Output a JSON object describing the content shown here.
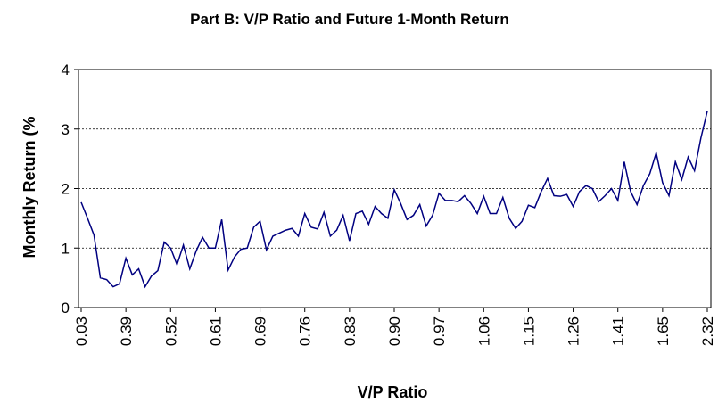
{
  "chart_data": {
    "type": "line",
    "title": "Part B: V/P Ratio and  Future 1-Month Return",
    "x_label": "V/P Ratio",
    "y_label": "Monthly Return (%",
    "categories": [
      "0.03",
      null,
      null,
      null,
      null,
      null,
      null,
      "0.39",
      null,
      null,
      null,
      null,
      null,
      null,
      "0.52",
      null,
      null,
      null,
      null,
      null,
      null,
      "0.61",
      null,
      null,
      null,
      null,
      null,
      null,
      "0.69",
      null,
      null,
      null,
      null,
      null,
      null,
      "0.76",
      null,
      null,
      null,
      null,
      null,
      null,
      "0.83",
      null,
      null,
      null,
      null,
      null,
      null,
      "0.90",
      null,
      null,
      null,
      null,
      null,
      null,
      "0.97",
      null,
      null,
      null,
      null,
      null,
      null,
      "1.06",
      null,
      null,
      null,
      null,
      null,
      null,
      "1.15",
      null,
      null,
      null,
      null,
      null,
      null,
      "1.26",
      null,
      null,
      null,
      null,
      null,
      null,
      "1.41",
      null,
      null,
      null,
      null,
      null,
      null,
      "1.65",
      null,
      null,
      null,
      null,
      null,
      null,
      "2.32"
    ],
    "series": [
      {
        "name": "Monthly Return",
        "color": "#000080",
        "values": [
          1.77,
          1.5,
          1.22,
          0.5,
          0.47,
          0.35,
          0.4,
          0.83,
          0.55,
          0.65,
          0.35,
          0.53,
          0.62,
          1.1,
          1.0,
          0.72,
          1.05,
          0.65,
          0.95,
          1.18,
          1.0,
          1.0,
          1.48,
          0.63,
          0.85,
          0.98,
          1.0,
          1.35,
          1.45,
          0.97,
          1.2,
          1.25,
          1.3,
          1.33,
          1.2,
          1.58,
          1.35,
          1.32,
          1.6,
          1.2,
          1.3,
          1.55,
          1.12,
          1.58,
          1.62,
          1.4,
          1.7,
          1.58,
          1.5,
          1.98,
          1.75,
          1.48,
          1.55,
          1.73,
          1.37,
          1.55,
          1.92,
          1.8,
          1.8,
          1.78,
          1.88,
          1.75,
          1.58,
          1.87,
          1.58,
          1.58,
          1.85,
          1.5,
          1.33,
          1.45,
          1.72,
          1.68,
          1.95,
          2.17,
          1.88,
          1.87,
          1.9,
          1.7,
          1.95,
          2.05,
          2.0,
          1.78,
          1.88,
          2.0,
          1.8,
          2.45,
          1.95,
          1.73,
          2.05,
          2.25,
          2.6,
          2.1,
          1.88,
          2.45,
          2.15,
          2.53,
          2.3,
          2.85,
          3.3
        ]
      }
    ],
    "ylim": [
      0,
      4
    ],
    "yticks": [
      0,
      1,
      2,
      3,
      4
    ],
    "grid": true
  }
}
